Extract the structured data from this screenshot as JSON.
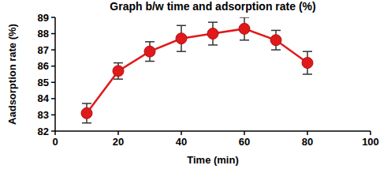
{
  "chart_data": {
    "type": "line",
    "title": "Graph b/w time and adsorption rate (%)",
    "x_label": "Time (min)",
    "y_label": "Aadsorption rate (%)",
    "x": [
      10,
      20,
      30,
      40,
      50,
      60,
      70,
      80
    ],
    "values": [
      83.1,
      85.7,
      86.9,
      87.7,
      88.0,
      88.3,
      87.6,
      86.2
    ],
    "errors": [
      0.6,
      0.5,
      0.6,
      0.8,
      0.7,
      0.7,
      0.6,
      0.7
    ],
    "color": "#e0191b",
    "marker": "circle",
    "xlim": [
      0,
      100
    ],
    "xticks": [
      0,
      20,
      40,
      60,
      80,
      100
    ],
    "ylim": [
      82,
      89
    ],
    "yticks": [
      82,
      83,
      84,
      85,
      86,
      87,
      88,
      89
    ],
    "grid": false
  }
}
